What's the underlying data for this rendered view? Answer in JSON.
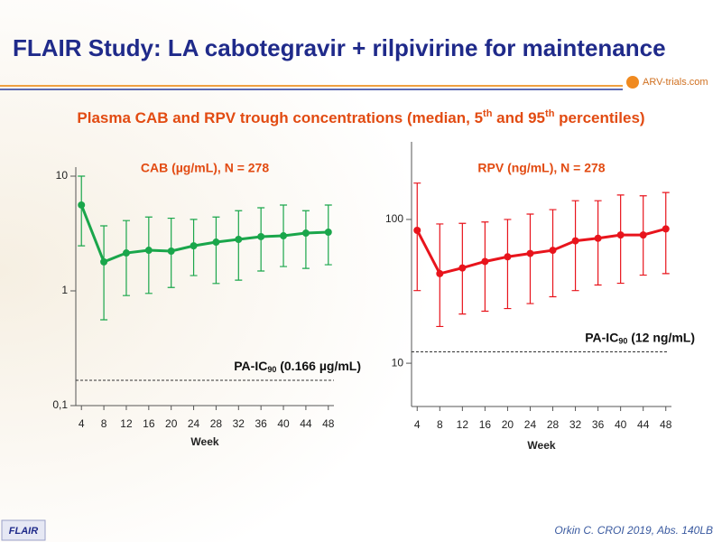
{
  "title": "FLAIR Study: LA cabotegravir + rilpivirine for maintenance",
  "logo": "ARV-trials.com",
  "subtitle": [
    "Plasma CAB and RPV trough concentrations (median, 5",
    "th",
    " and 95",
    "th",
    " percentiles)"
  ],
  "footer_tag": "FLAIR",
  "citation": "Orkin C. CROI 2019, Abs. 140LB",
  "chart_data": [
    {
      "type": "line",
      "title": "CAB (µg/mL), N = 278",
      "xlabel": "Week",
      "x": [
        4,
        8,
        12,
        16,
        20,
        24,
        28,
        32,
        36,
        40,
        44,
        48
      ],
      "xlim": [
        3,
        49
      ],
      "xticks": [
        4,
        8,
        12,
        16,
        20,
        24,
        28,
        32,
        36,
        40,
        44,
        48
      ],
      "ylog": true,
      "ylim": [
        0.1,
        10
      ],
      "yticks": [
        {
          "value": 0.1,
          "label": "0,1"
        },
        1,
        10
      ],
      "series": [
        {
          "color": "#1aa64b",
          "values": [
            5.6,
            1.79,
            2.14,
            2.26,
            2.22,
            2.47,
            2.66,
            2.81,
            2.97,
            3.02,
            3.19,
            3.25
          ],
          "lower": [
            2.47,
            0.56,
            0.91,
            0.95,
            1.07,
            1.36,
            1.16,
            1.24,
            1.49,
            1.63,
            1.57,
            1.69
          ],
          "upper": [
            10,
            3.69,
            4.1,
            4.4,
            4.3,
            4.2,
            4.4,
            5.0,
            5.3,
            5.6,
            5.0,
            5.6
          ]
        }
      ],
      "threshold": {
        "value": 0.166,
        "label": [
          "PA-IC",
          "90",
          " (0.166 µg/mL)"
        ]
      }
    },
    {
      "type": "line",
      "title": "RPV (ng/mL), N = 278",
      "xlabel": "Week",
      "x": [
        4,
        8,
        12,
        16,
        20,
        24,
        28,
        32,
        36,
        40,
        44,
        48
      ],
      "xlim": [
        3,
        49
      ],
      "xticks": [
        4,
        8,
        12,
        16,
        20,
        24,
        28,
        32,
        36,
        40,
        44,
        48
      ],
      "ylog": true,
      "ylim": [
        5,
        300
      ],
      "yticks": [
        10,
        100
      ],
      "series": [
        {
          "color": "#e8141c",
          "values": [
            84,
            42,
            46,
            51,
            55,
            58,
            61,
            71,
            74,
            78,
            78,
            86
          ],
          "lower": [
            32,
            18,
            22,
            23,
            24,
            26,
            29,
            32,
            35,
            36,
            41,
            42
          ],
          "upper": [
            179,
            93,
            94,
            96,
            100,
            109,
            117,
            135,
            135,
            148,
            146,
            154
          ]
        }
      ],
      "threshold": {
        "value": 12,
        "label": [
          "PA-IC",
          "90",
          " (12 ng/mL)"
        ]
      }
    }
  ]
}
